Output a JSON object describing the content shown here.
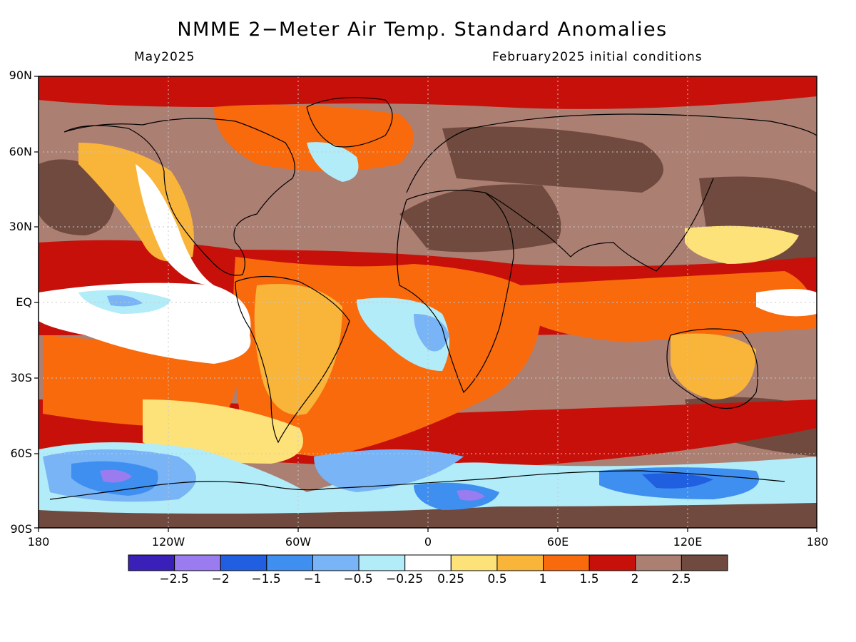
{
  "header": {
    "title": "NMME 2−Meter Air Temp. Standard Anomalies",
    "valid_month": "May2025",
    "initial_conditions": "February2025 initial conditions"
  },
  "axes": {
    "lat_labels": [
      "90N",
      "60N",
      "30N",
      "EQ",
      "30S",
      "60S",
      "90S"
    ],
    "lon_labels": [
      "180",
      "120W",
      "60W",
      "0",
      "60E",
      "120E",
      "180"
    ]
  },
  "colorbar": {
    "labels": [
      "−2.5",
      "−2",
      "−1.5",
      "−1",
      "−0.5",
      "−0.25",
      "0.25",
      "0.5",
      "1",
      "1.5",
      "2",
      "2.5"
    ],
    "colors": [
      "#3a1fb8",
      "#9a7cf0",
      "#1f5fe0",
      "#3f8ff0",
      "#78b4f6",
      "#b2ecf8",
      "#ffffff",
      "#fde27a",
      "#f9b43a",
      "#f86a0c",
      "#c8100a",
      "#ac7f73",
      "#704a3e"
    ]
  },
  "colors": {
    "background_anomaly": "#ac7f73",
    "coastline": "#000000"
  }
}
